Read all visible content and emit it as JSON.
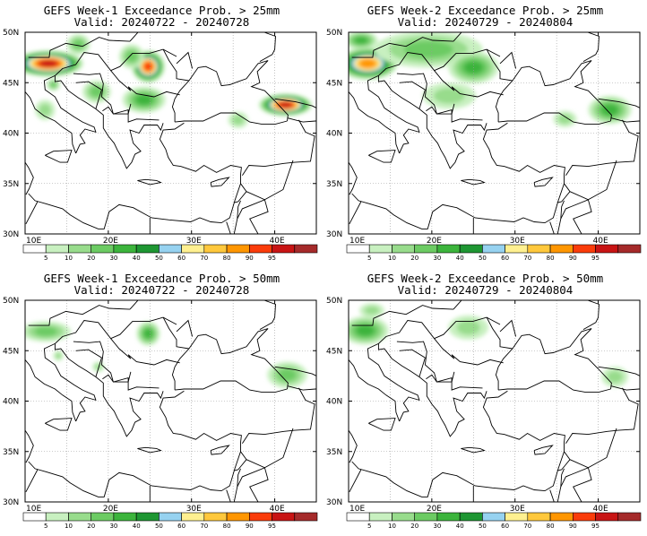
{
  "palette": [
    "#ffffff",
    "#c8f0c0",
    "#98dc8c",
    "#6ccb63",
    "#3cb43c",
    "#1e9632",
    "#96d2f0",
    "#fff090",
    "#ffc83c",
    "#ff9600",
    "#fa3c0a",
    "#c81414",
    "#a52a2a"
  ],
  "colorbar_labels": [
    "5",
    "10",
    "20",
    "30",
    "40",
    "50",
    "60",
    "70",
    "80",
    "90",
    "95"
  ],
  "lon_labels": [
    "10E",
    "20E",
    "30E",
    "40E"
  ],
  "lat_labels": [
    "50N",
    "45N",
    "40N",
    "35N",
    "30N"
  ],
  "panels": [
    {
      "title": "GEFS Week-1 Exceedance Prob. > 25mm",
      "valid": "Valid: 20240722 - 20240728",
      "blobs": [
        {
          "lon": 12.8,
          "lat": 46.9,
          "rx": 4.2,
          "ry": 1.3,
          "level": 11
        },
        {
          "lon": 16.4,
          "lat": 48.8,
          "rx": 1.4,
          "ry": 1.0,
          "level": 3
        },
        {
          "lon": 24.8,
          "lat": 46.6,
          "rx": 2.0,
          "ry": 1.6,
          "level": 10
        },
        {
          "lon": 24.3,
          "lat": 43.3,
          "rx": 2.6,
          "ry": 1.3,
          "level": 4
        },
        {
          "lon": 18.6,
          "lat": 44.1,
          "rx": 1.7,
          "ry": 1.1,
          "level": 3
        },
        {
          "lon": 12.4,
          "lat": 42.3,
          "rx": 1.2,
          "ry": 1.0,
          "level": 2
        },
        {
          "lon": 22.8,
          "lat": 47.6,
          "rx": 1.5,
          "ry": 1.2,
          "level": 3
        },
        {
          "lon": 41.3,
          "lat": 42.8,
          "rx": 3.2,
          "ry": 1.1,
          "level": 11
        },
        {
          "lon": 35.6,
          "lat": 41.3,
          "rx": 1.2,
          "ry": 0.8,
          "level": 2
        },
        {
          "lon": 13.4,
          "lat": 44.8,
          "rx": 0.8,
          "ry": 0.6,
          "level": 3
        }
      ]
    },
    {
      "title": "GEFS Week-2 Exceedance Prob. > 25mm",
      "valid": "Valid: 20240729 - 20240804",
      "blobs": [
        {
          "lon": 12.3,
          "lat": 46.9,
          "rx": 3.6,
          "ry": 1.6,
          "level": 9
        },
        {
          "lon": 11.5,
          "lat": 49.2,
          "rx": 2.0,
          "ry": 0.9,
          "level": 4
        },
        {
          "lon": 19.6,
          "lat": 48.3,
          "rx": 6.5,
          "ry": 1.8,
          "level": 3
        },
        {
          "lon": 25.0,
          "lat": 46.5,
          "rx": 3.0,
          "ry": 1.6,
          "level": 4
        },
        {
          "lon": 22.1,
          "lat": 43.7,
          "rx": 3.2,
          "ry": 1.3,
          "level": 2
        },
        {
          "lon": 41.4,
          "lat": 42.3,
          "rx": 2.6,
          "ry": 1.4,
          "level": 4
        },
        {
          "lon": 36.0,
          "lat": 41.4,
          "rx": 1.4,
          "ry": 0.8,
          "level": 2
        }
      ]
    },
    {
      "title": "GEFS Week-1 Exceedance Prob. > 50mm",
      "valid": "Valid: 20240722 - 20240728",
      "blobs": [
        {
          "lon": 12.5,
          "lat": 46.9,
          "rx": 3.0,
          "ry": 1.0,
          "level": 3
        },
        {
          "lon": 24.8,
          "lat": 46.7,
          "rx": 1.4,
          "ry": 1.2,
          "level": 4
        },
        {
          "lon": 41.5,
          "lat": 42.6,
          "rx": 2.4,
          "ry": 1.3,
          "level": 3
        },
        {
          "lon": 18.8,
          "lat": 43.4,
          "rx": 0.7,
          "ry": 0.5,
          "level": 2
        },
        {
          "lon": 14.0,
          "lat": 44.5,
          "rx": 0.6,
          "ry": 0.5,
          "level": 2
        }
      ]
    },
    {
      "title": "GEFS Week-2 Exceedance Prob. > 50mm",
      "valid": "Valid: 20240729 - 20240804",
      "blobs": [
        {
          "lon": 12.0,
          "lat": 47.0,
          "rx": 2.8,
          "ry": 1.4,
          "level": 4
        },
        {
          "lon": 12.8,
          "lat": 49.0,
          "rx": 1.5,
          "ry": 0.7,
          "level": 2
        },
        {
          "lon": 24.4,
          "lat": 47.3,
          "rx": 2.4,
          "ry": 1.2,
          "level": 2
        },
        {
          "lon": 42.0,
          "lat": 42.4,
          "rx": 1.6,
          "ry": 1.0,
          "level": 2
        }
      ]
    }
  ]
}
